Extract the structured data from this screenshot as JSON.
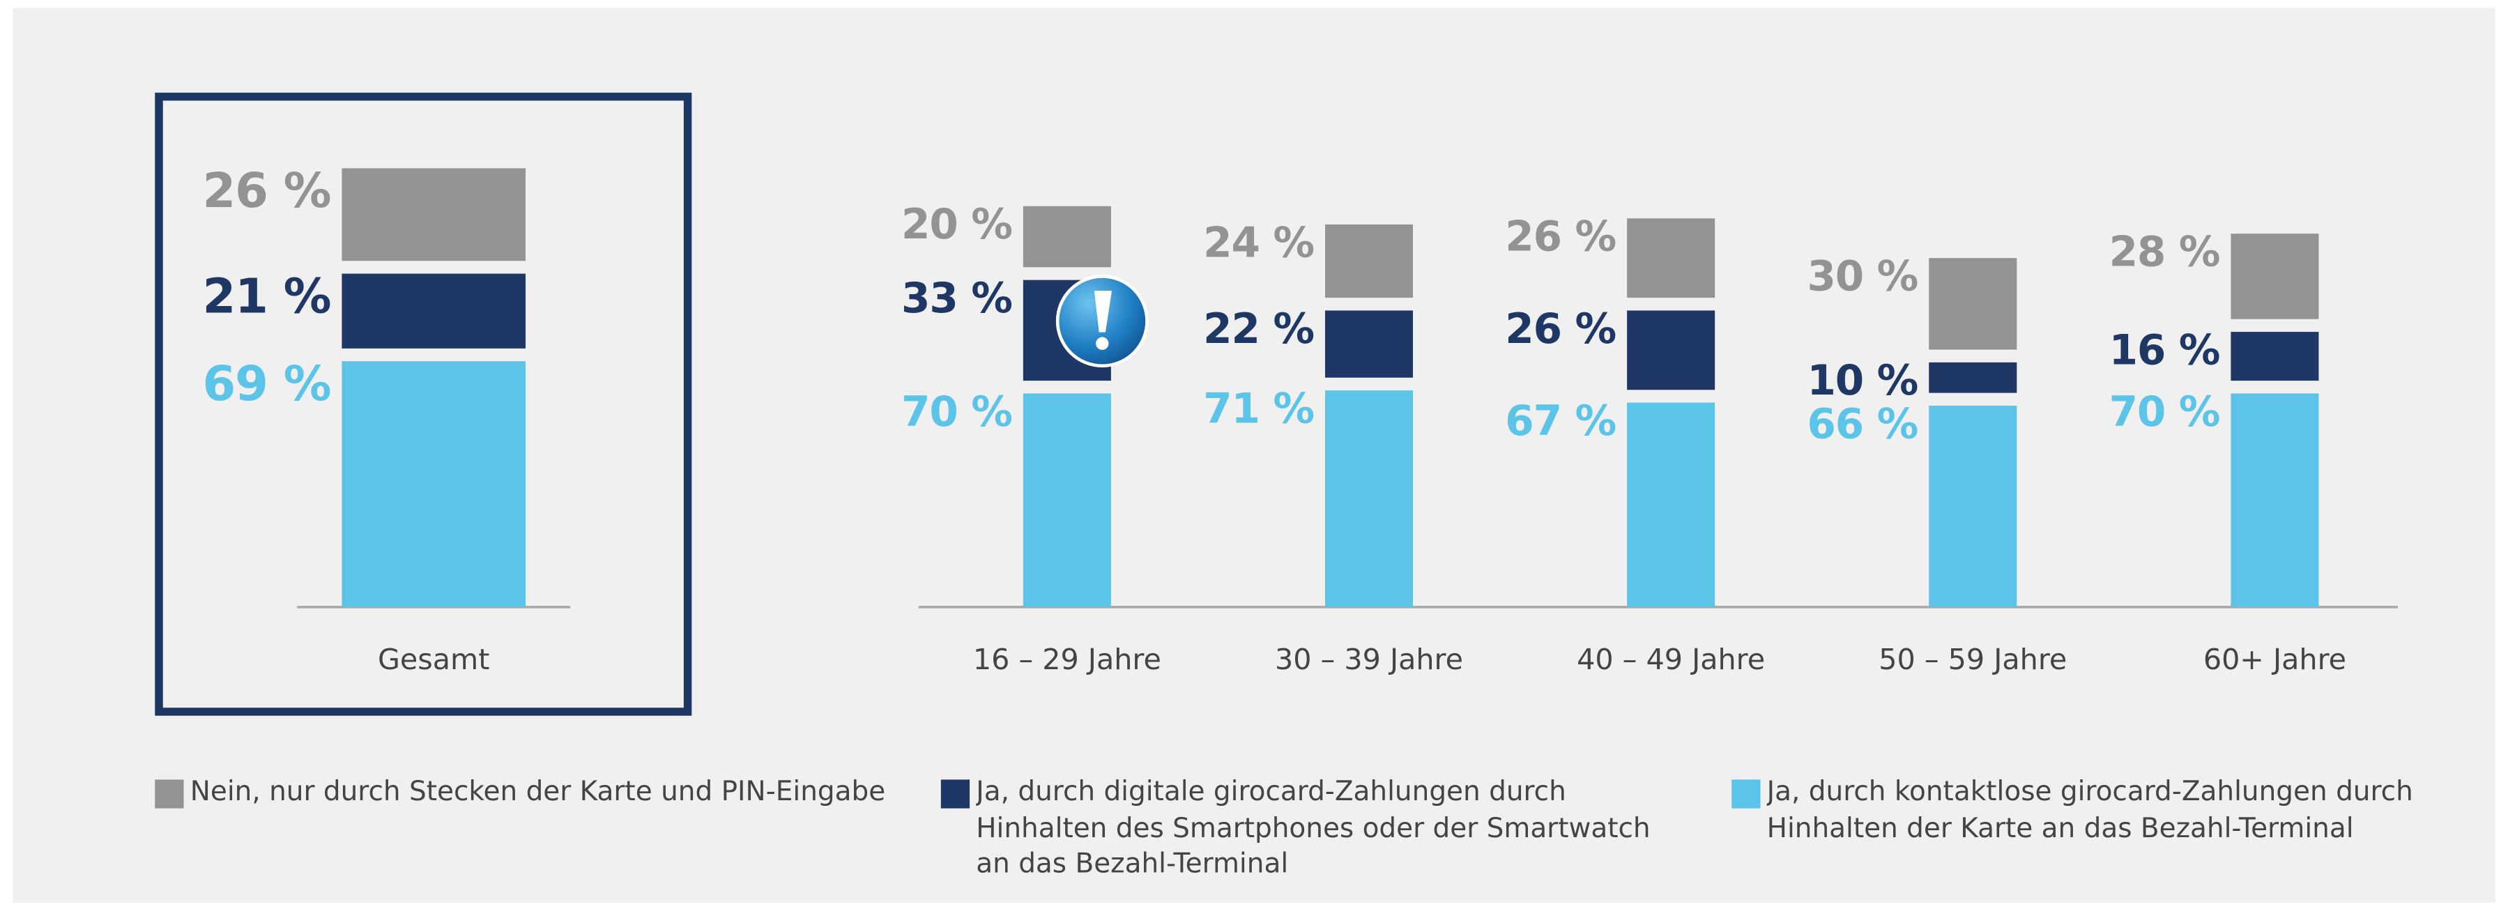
{
  "chart_data": {
    "type": "stacked_bar",
    "categories": [
      "Gesamt",
      "16 – 29 Jahre",
      "30 – 39 Jahre",
      "40 – 49 Jahre",
      "50 – 59 Jahre",
      "60+ Jahre"
    ],
    "series": [
      {
        "name": "Ja, durch kontaktlose girocard-Zahlungen durch Hinhalten der Karte an das Bezahl-Terminal",
        "color": "#5bc4e8",
        "values": [
          69,
          70,
          71,
          67,
          66,
          70
        ],
        "value_labels": [
          "69 %",
          "70 %",
          "71 %",
          "67 %",
          "66 %",
          "70 %"
        ]
      },
      {
        "name": "Ja, durch digitale girocard-Zahlungen durch Hinhalten des Smartphones oder der Smartwatch an das Bezahl-Terminal",
        "color": "#1e3765",
        "values": [
          21,
          33,
          22,
          26,
          10,
          16
        ],
        "value_labels": [
          "21 %",
          "33 %",
          "22 %",
          "26 %",
          "10 %",
          "16 %"
        ]
      },
      {
        "name": "Nein, nur durch Stecken der Karte und PIN-Eingabe",
        "color": "#939393",
        "values": [
          26,
          20,
          24,
          26,
          30,
          28
        ],
        "value_labels": [
          "26 %",
          "20 %",
          "24 %",
          "26 %",
          "30 %",
          "28 %"
        ]
      }
    ]
  }
}
